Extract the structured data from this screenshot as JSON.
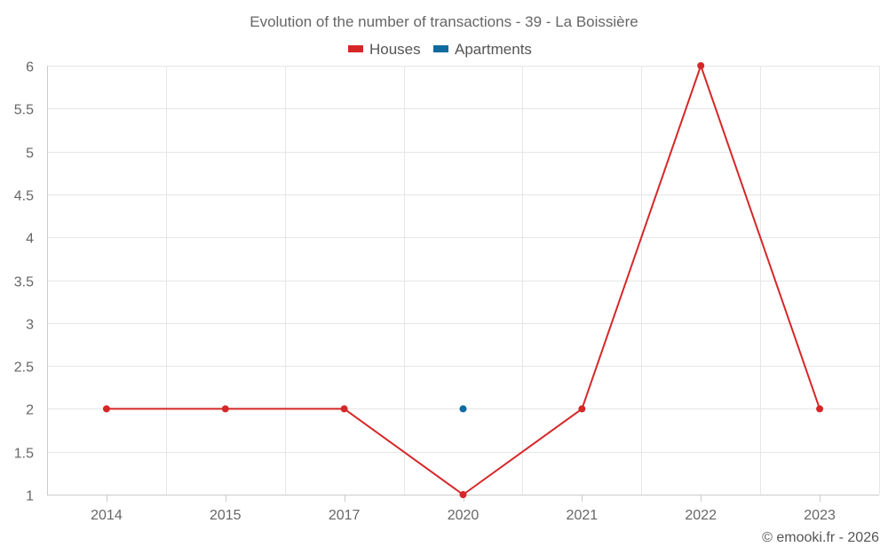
{
  "chart_data": {
    "type": "line",
    "title": "Evolution of the number of transactions - 39 - La Boissière",
    "categories": [
      "2014",
      "2015",
      "2017",
      "2020",
      "2021",
      "2022",
      "2023"
    ],
    "series": [
      {
        "name": "Houses",
        "color": "#d62728",
        "values": [
          2,
          2,
          2,
          1,
          2,
          6,
          2
        ]
      },
      {
        "name": "Apartments",
        "color": "#0f6aa0",
        "values": [
          null,
          null,
          null,
          2,
          null,
          null,
          null
        ]
      }
    ],
    "yticks": [
      "1",
      "1.5",
      "2",
      "2.5",
      "3",
      "3.5",
      "4",
      "4.5",
      "5",
      "5.5",
      "6"
    ],
    "ylim": [
      1,
      6
    ],
    "xlabel": "",
    "ylabel": "",
    "grid": true,
    "legend_position": "top-center"
  },
  "credit": "© emooki.fr - 2026"
}
